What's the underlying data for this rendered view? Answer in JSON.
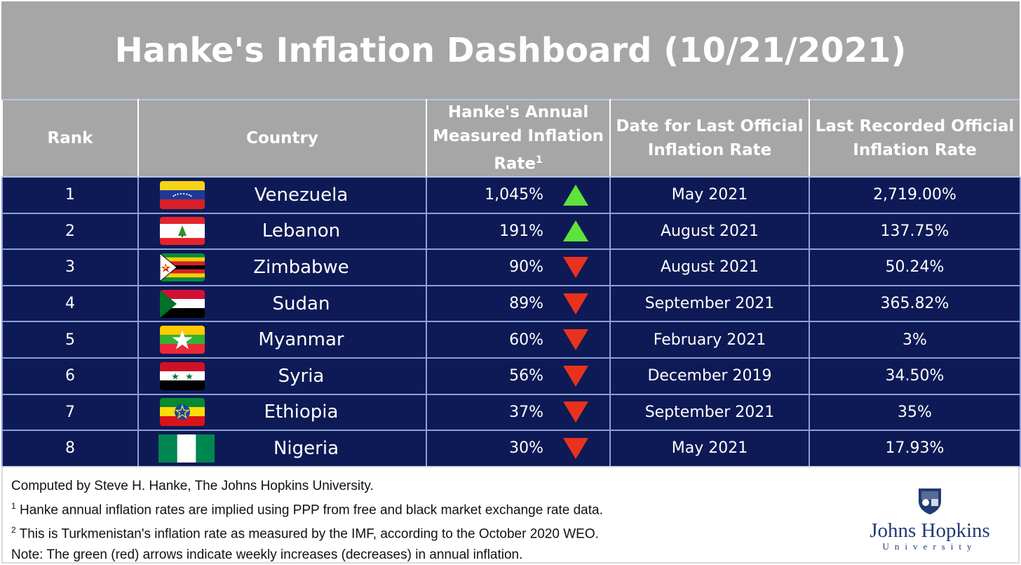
{
  "title": "Hanke's Inflation Dashboard (10/21/2021)",
  "headers": {
    "rank": "Rank",
    "country": "Country",
    "hanke_rate": "Hanke's Annual Measured Inflation Rate",
    "hanke_rate_sup": "1",
    "official_date": "Date for Last Official Inflation Rate",
    "official_rate": "Last Recorded Official Inflation Rate"
  },
  "rows": [
    {
      "rank": "1",
      "country": "Venezuela",
      "flag": "venezuela-flag",
      "hanke_rate": "1,045%",
      "arrow": "up",
      "official_date": "May 2021",
      "official_rate": "2,719.00%"
    },
    {
      "rank": "2",
      "country": "Lebanon",
      "flag": "lebanon-flag",
      "hanke_rate": "191%",
      "arrow": "up",
      "official_date": "August 2021",
      "official_rate": "137.75%"
    },
    {
      "rank": "3",
      "country": "Zimbabwe",
      "flag": "zimbabwe-flag",
      "hanke_rate": "90%",
      "arrow": "down",
      "official_date": "August 2021",
      "official_rate": "50.24%"
    },
    {
      "rank": "4",
      "country": "Sudan",
      "flag": "sudan-flag",
      "hanke_rate": "89%",
      "arrow": "down",
      "official_date": "September 2021",
      "official_rate": "365.82%"
    },
    {
      "rank": "5",
      "country": "Myanmar",
      "flag": "myanmar-flag",
      "hanke_rate": "60%",
      "arrow": "down",
      "official_date": "February 2021",
      "official_rate": "3%"
    },
    {
      "rank": "6",
      "country": "Syria",
      "flag": "syria-flag",
      "hanke_rate": "56%",
      "arrow": "down",
      "official_date": "December 2019",
      "official_rate": "34.50%"
    },
    {
      "rank": "7",
      "country": "Ethiopia",
      "flag": "ethiopia-flag",
      "hanke_rate": "37%",
      "arrow": "down",
      "official_date": "September 2021",
      "official_rate": "35%"
    },
    {
      "rank": "8",
      "country": "Nigeria",
      "flag": "nigeria-flag",
      "hanke_rate": "30%",
      "arrow": "down",
      "official_date": "May 2021",
      "official_rate": "17.93%"
    }
  ],
  "colors": {
    "header_gray": "#a6a6a6",
    "row_navy": "#0e1a55",
    "arrow_up": "#5fe33c",
    "arrow_down": "#e8321e",
    "jhu_blue": "#1f3b73"
  },
  "footer": {
    "credit": "Computed by Steve H. Hanke, The Johns Hopkins University.",
    "note1_sup": "1",
    "note1": " Hanke annual inflation rates are implied using PPP from free and black market exchange rate data.",
    "note2_sup": "2",
    "note2": " This is Turkmenistan's inflation rate as measured by the IMF, according to the October 2020 WEO.",
    "note3": "Note: The green (red) arrows indicate weekly increases (decreases) in annual inflation."
  },
  "logo": {
    "name": "Johns Hopkins",
    "sub": "University",
    "icon": "jhu-shield-icon"
  }
}
